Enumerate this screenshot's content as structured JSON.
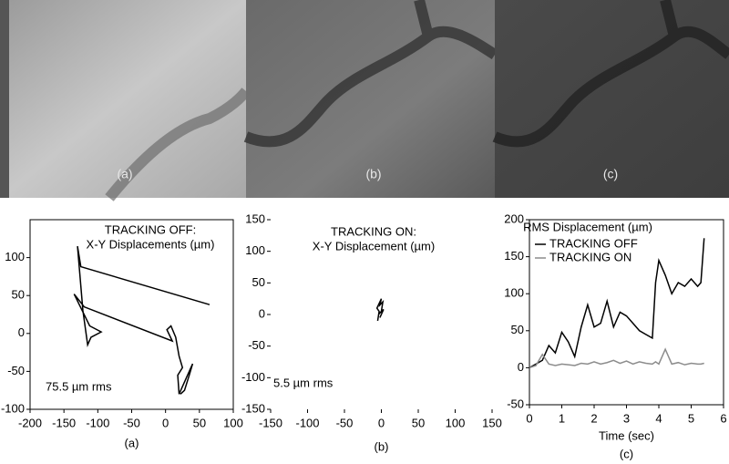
{
  "images": [
    {
      "label": "(a)"
    },
    {
      "label": "(b)"
    },
    {
      "label": "(c)"
    }
  ],
  "chart_data": [
    {
      "type": "line",
      "title": "TRACKING OFF:",
      "subtitle": "X-Y Displacements (µm)",
      "annotation": "75.5   µm rms",
      "caption": "(a)",
      "color": "#000000",
      "box": true,
      "x": [
        65,
        -125,
        -130,
        -122,
        -115,
        -110,
        -95,
        -112,
        -135,
        -120,
        10,
        2,
        8,
        15,
        20,
        25,
        18,
        20,
        30,
        40,
        35,
        28,
        22
      ],
      "values": [
        38,
        88,
        115,
        30,
        -15,
        -5,
        2,
        10,
        52,
        35,
        -10,
        5,
        10,
        -5,
        -30,
        -45,
        -55,
        -80,
        -60,
        -40,
        -55,
        -75,
        -80
      ],
      "xlim": [
        -200,
        100
      ],
      "xticks": [
        -200,
        -150,
        -100,
        -50,
        0,
        50,
        100
      ],
      "ylim": [
        -100,
        150
      ],
      "yticks": [
        -100,
        -50,
        0,
        50,
        100
      ]
    },
    {
      "type": "line",
      "title": "TRACKING ON:",
      "subtitle": "X-Y Displacement (µm)",
      "annotation": "5.5   µm rms",
      "caption": "(b)",
      "color": "#000000",
      "box": false,
      "x": [
        -5,
        -3,
        -6,
        0,
        -2,
        2,
        0,
        -4,
        3,
        -2
      ],
      "values": [
        -10,
        5,
        10,
        25,
        15,
        20,
        5,
        0,
        8,
        -5
      ],
      "xlim": [
        -150,
        150
      ],
      "xticks": [
        -150,
        -100,
        -50,
        0,
        50,
        100,
        150
      ],
      "ylim": [
        -150,
        150
      ],
      "yticks": [
        -150,
        -100,
        -50,
        0,
        50,
        100,
        150
      ]
    },
    {
      "type": "line",
      "title": "RMS Displacement (µm)",
      "x_label": "Time (sec)",
      "caption": "(c)",
      "box": true,
      "legend": "upper left",
      "x": [
        0,
        0.2,
        0.4,
        0.6,
        0.8,
        1.0,
        1.2,
        1.4,
        1.6,
        1.8,
        2.0,
        2.2,
        2.4,
        2.6,
        2.8,
        3.0,
        3.2,
        3.4,
        3.6,
        3.8,
        3.9,
        4.0,
        4.2,
        4.4,
        4.6,
        4.8,
        5.0,
        5.2,
        5.3,
        5.4
      ],
      "series": [
        {
          "name": "TRACKING OFF",
          "color": "#000000",
          "values": [
            0,
            5,
            10,
            30,
            20,
            48,
            35,
            15,
            55,
            85,
            55,
            60,
            90,
            55,
            75,
            70,
            60,
            50,
            45,
            40,
            115,
            145,
            125,
            100,
            115,
            110,
            120,
            110,
            115,
            175
          ]
        },
        {
          "name": "TRACKING ON",
          "color": "#8c8c8c",
          "values": [
            0,
            3,
            18,
            5,
            3,
            5,
            4,
            3,
            6,
            5,
            8,
            5,
            7,
            10,
            6,
            9,
            5,
            8,
            6,
            5,
            8,
            5,
            25,
            5,
            7,
            4,
            6,
            5,
            5,
            6
          ]
        }
      ],
      "xlim": [
        0,
        6
      ],
      "xticks": [
        0,
        1,
        2,
        3,
        4,
        5,
        6
      ],
      "ylim": [
        -50,
        200
      ],
      "yticks": [
        -50,
        0,
        50,
        100,
        150,
        200
      ]
    }
  ]
}
